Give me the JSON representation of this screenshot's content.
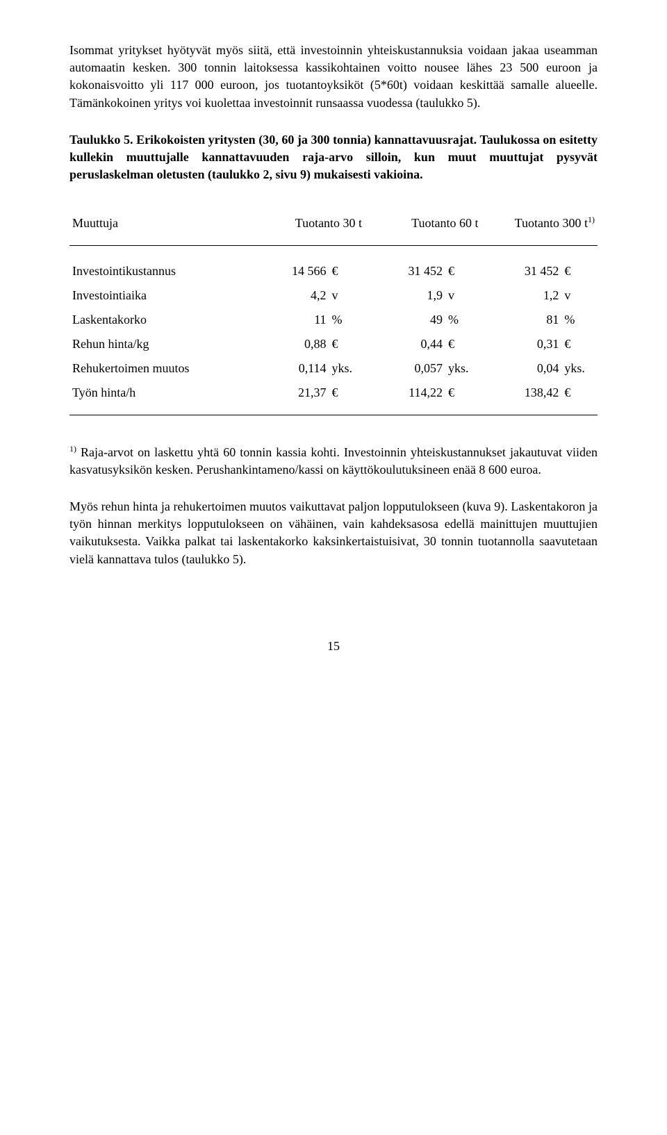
{
  "paragraphs": {
    "intro": "Isommat yritykset hyötyvät myös siitä, että investoinnin yhteiskustannuksia voidaan jakaa useamman automaatin kesken. 300 tonnin laitoksessa kassikohtainen voitto nousee lähes 23 500 euroon ja kokonaisvoitto yli 117 000 euroon, jos  tuotantoyksiköt (5*60t) voidaan keskittää samalle alueelle. Tämänkokoinen yritys voi kuolettaa investoinnit runsaassa vuodessa (taulukko 5).",
    "footnote": " Raja-arvot on laskettu yhtä 60 tonnin kassia kohti. Investoinnin yhteiskustannukset jakautuvat viiden kasvatusyksikön kesken. Perushankintameno/kassi on käyttökoulutuksineen enää 8 600 euroa.",
    "closing": "Myös rehun hinta ja rehukertoimen muutos vaikuttavat paljon lopputulokseen (kuva 9).  Laskentakoron ja työn hinnan merkitys lopputulokseen on vähäinen, vain kahdeksasosa edellä mainittujen muuttujien vaikutuksesta. Vaikka palkat tai laskentakorko kaksinkertaistuisivat, 30 tonnin tuotannolla  saavutetaan vielä kannattava tulos (taulukko 5)."
  },
  "table_caption": {
    "label": "Taulukko 5. Erikokoisten yritysten (30, 60 ja 300 tonnia) kannattavuusrajat. Taulukossa on esitetty kullekin muuttujalle kannattavuuden raja-arvo silloin, kun muut muuttujat pysyvät peruslaskelman oletusten (taulukko 2, sivu 9) mukaisesti vakioina."
  },
  "table": {
    "header": {
      "col1": "Muuttuja",
      "col2": "Tuotanto  30 t",
      "col3": "Tuotanto  60 t",
      "col4": "Tuotanto  300 t",
      "sup": "1)"
    },
    "rows": [
      {
        "label": "Investointikustannus",
        "v1": "14 566",
        "u1": "€",
        "v2": "31 452",
        "u2": "€",
        "v3": "31 452",
        "u3": "€"
      },
      {
        "label": "Investointiaika",
        "v1": "4,2",
        "u1": "v",
        "v2": "1,9",
        "u2": "v",
        "v3": "1,2",
        "u3": "v"
      },
      {
        "label": "Laskentakorko",
        "v1": "11",
        "u1": "%",
        "v2": "49",
        "u2": "%",
        "v3": "81",
        "u3": "%"
      },
      {
        "label": "Rehun hinta/kg",
        "v1": "0,88",
        "u1": "€",
        "v2": "0,44",
        "u2": "€",
        "v3": "0,31",
        "u3": "€"
      },
      {
        "label": "Rehukertoimen muutos",
        "v1": "0,114",
        "u1": "yks.",
        "v2": "0,057",
        "u2": "yks.",
        "v3": "0,04",
        "u3": "yks."
      },
      {
        "label": "Työn hinta/h",
        "v1": "21,37",
        "u1": "€",
        "v2": "114,22",
        "u2": "€",
        "v3": "138,42",
        "u3": "€"
      }
    ]
  },
  "footnote_sup": "1)",
  "page_number": "15"
}
